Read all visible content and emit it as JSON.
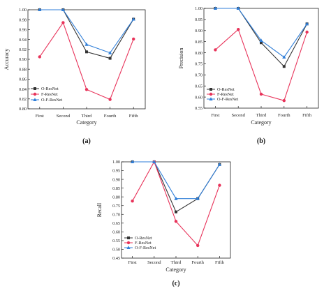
{
  "chart_data": [
    {
      "type": "line",
      "panel_label": "(a)",
      "categories": [
        "First",
        "Second",
        "Third",
        "Fourth",
        "Fifth"
      ],
      "xlabel": "Category",
      "ylabel": "Accuracy",
      "ylim": [
        0.8,
        1.0
      ],
      "yticks": [
        "0.80",
        "0.82",
        "0.84",
        "0.86",
        "0.88",
        "0.90",
        "0.92",
        "0.94",
        "0.96",
        "0.98",
        "1.00"
      ],
      "legend_position": "bottom-left",
      "series": [
        {
          "name": "O-ResNet",
          "color": "#333333",
          "marker": "square",
          "values": [
            1.0,
            1.0,
            0.915,
            0.902,
            0.981
          ]
        },
        {
          "name": "F-ResNet",
          "color": "#e8335a",
          "marker": "circle",
          "values": [
            0.905,
            0.974,
            0.839,
            0.819,
            0.941
          ]
        },
        {
          "name": "O-F-ResNet",
          "color": "#2f7ed8",
          "marker": "triangle",
          "values": [
            1.0,
            1.0,
            0.93,
            0.913,
            0.981
          ]
        }
      ]
    },
    {
      "type": "line",
      "panel_label": "(b)",
      "categories": [
        "First",
        "Second",
        "Third",
        "Fourth",
        "Fifth"
      ],
      "xlabel": "Category",
      "ylabel": "Precision",
      "ylim": [
        0.55,
        1.0
      ],
      "yticks": [
        "0.55",
        "0.60",
        "0.65",
        "0.70",
        "0.75",
        "0.80",
        "0.85",
        "0.90",
        "0.95",
        "1.00"
      ],
      "legend_position": "bottom-left",
      "series": [
        {
          "name": "O-ResNet",
          "color": "#333333",
          "marker": "square",
          "values": [
            1.0,
            1.0,
            0.845,
            0.738,
            0.93
          ]
        },
        {
          "name": "F-ResNet",
          "color": "#e8335a",
          "marker": "circle",
          "values": [
            0.813,
            0.905,
            0.613,
            0.584,
            0.893
          ]
        },
        {
          "name": "O-F-ResNet",
          "color": "#2f7ed8",
          "marker": "triangle",
          "values": [
            1.0,
            1.0,
            0.855,
            0.78,
            0.93
          ]
        }
      ]
    },
    {
      "type": "line",
      "panel_label": "(c)",
      "categories": [
        "First",
        "Second",
        "Third",
        "Fourth",
        "Fifth"
      ],
      "xlabel": "Category",
      "ylabel": "Recall",
      "ylim": [
        0.45,
        1.0
      ],
      "yticks": [
        "0.45",
        "0.50",
        "0.55",
        "0.60",
        "0.65",
        "0.70",
        "0.75",
        "0.80",
        "0.85",
        "0.90",
        "0.95",
        "1.00"
      ],
      "legend_position": "bottom-left",
      "series": [
        {
          "name": "O-ResNet",
          "color": "#333333",
          "marker": "square",
          "values": [
            1.0,
            1.0,
            0.714,
            0.79,
            0.985
          ]
        },
        {
          "name": "F-ResNet",
          "color": "#e8335a",
          "marker": "circle",
          "values": [
            0.776,
            1.0,
            0.66,
            0.522,
            0.866
          ]
        },
        {
          "name": "O-F-ResNet",
          "color": "#2f7ed8",
          "marker": "triangle",
          "values": [
            1.0,
            1.0,
            0.79,
            0.79,
            0.985
          ]
        }
      ]
    }
  ]
}
